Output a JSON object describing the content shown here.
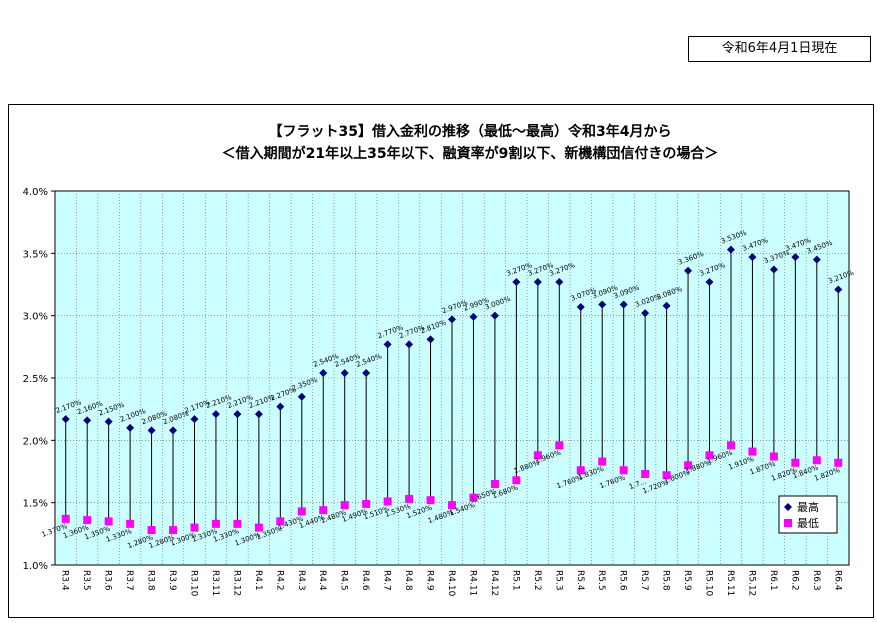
{
  "as_of_date": "令和6年4月1日現在",
  "chart_data": {
    "type": "line",
    "title": "【フラット35】借入金利の推移（最低～最高）令和3年4月から",
    "subtitle": "＜借入期間が21年以上35年以下、融資率が9割以下、新機構団信付きの場合＞",
    "xlabel": "",
    "ylabel": "",
    "ylim": [
      1.0,
      4.0
    ],
    "y_ticks": [
      "1.0%",
      "1.5%",
      "2.0%",
      "2.5%",
      "3.0%",
      "3.5%",
      "4.0%"
    ],
    "legend_position": "bottom-right",
    "colors": {
      "max": "#000080",
      "min": "#ff00ff",
      "plot_bg": "#ccffff"
    },
    "categories": [
      "R3.4",
      "R3.5",
      "R3.6",
      "R3.7",
      "R3.8",
      "R3.9",
      "R3.10",
      "R3.11",
      "R3.12",
      "R4.1",
      "R4.2",
      "R4.3",
      "R4.4",
      "R4.5",
      "R4.6",
      "R4.7",
      "R4.8",
      "R4.9",
      "R4.10",
      "R4.11",
      "R4.12",
      "R5.1",
      "R5.2",
      "R5.3",
      "R5.4",
      "R5.5",
      "R5.6",
      "R5.7",
      "R5.8",
      "R5.9",
      "R5.10",
      "R5.11",
      "R5.12",
      "R6.1",
      "R6.2",
      "R6.3",
      "R6.4"
    ],
    "series": [
      {
        "name": "最高",
        "values": [
          2.17,
          2.16,
          2.15,
          2.1,
          2.08,
          2.08,
          2.17,
          2.21,
          2.21,
          2.21,
          2.27,
          2.35,
          2.54,
          2.54,
          2.54,
          2.77,
          2.77,
          2.81,
          2.97,
          2.99,
          3.0,
          3.27,
          3.27,
          3.27,
          3.07,
          3.09,
          3.09,
          3.02,
          3.08,
          3.36,
          3.27,
          3.53,
          3.47,
          3.37,
          3.47,
          3.45,
          3.21
        ]
      },
      {
        "name": "最低",
        "values": [
          1.37,
          1.36,
          1.35,
          1.33,
          1.28,
          1.28,
          1.3,
          1.33,
          1.33,
          1.3,
          1.35,
          1.43,
          1.44,
          1.48,
          1.49,
          1.51,
          1.53,
          1.52,
          1.48,
          1.54,
          1.65,
          1.68,
          1.88,
          1.96,
          1.76,
          1.83,
          1.76,
          1.73,
          1.72,
          1.8,
          1.88,
          1.96,
          1.91,
          1.87,
          1.82,
          1.84,
          1.82
        ]
      }
    ],
    "max_labels": [
      "2.170%",
      "2.160%",
      "2.150%",
      "2.100%",
      "2.080%",
      "2.080%",
      "2.170%",
      "2.210%",
      "2.210%",
      "2.210%",
      "2.270%",
      "2.350%",
      "2.540%",
      "2.540%",
      "2.540%",
      "2.770%",
      "2.770%",
      "2.810%",
      "2.970%",
      "2.990%",
      "3.000%",
      "3.270%",
      "3.270%",
      "3.270%",
      "3.070%",
      "3.090%",
      "3.090%",
      "3.020%",
      "3.080%",
      "3.360%",
      "3.270%",
      "3.530%",
      "3.470%",
      "3.370%",
      "3.470%",
      "3.450%",
      "3.210%"
    ],
    "min_labels": [
      "1.370%",
      "1.360%",
      "1.350%",
      "1.330%",
      "1.280%",
      "1.280%",
      "1.300%",
      "1.330%",
      "1.330%",
      "1.300%",
      "1.350%",
      "1.430%",
      "1.440%",
      "1.480%",
      "1.490%",
      "1.510%",
      "1.530%",
      "1.520%",
      "1.480%",
      "1.540%",
      "1.650%",
      "1.680%",
      "1.880%",
      "1.960%",
      "1.760%",
      "1.830%",
      "1.760%",
      "1.7…",
      "1.720%",
      "1.800%",
      "1.880%",
      "1.960%",
      "1.910%",
      "1.870%",
      "1.820%",
      "1.840%",
      "1.820%"
    ]
  }
}
